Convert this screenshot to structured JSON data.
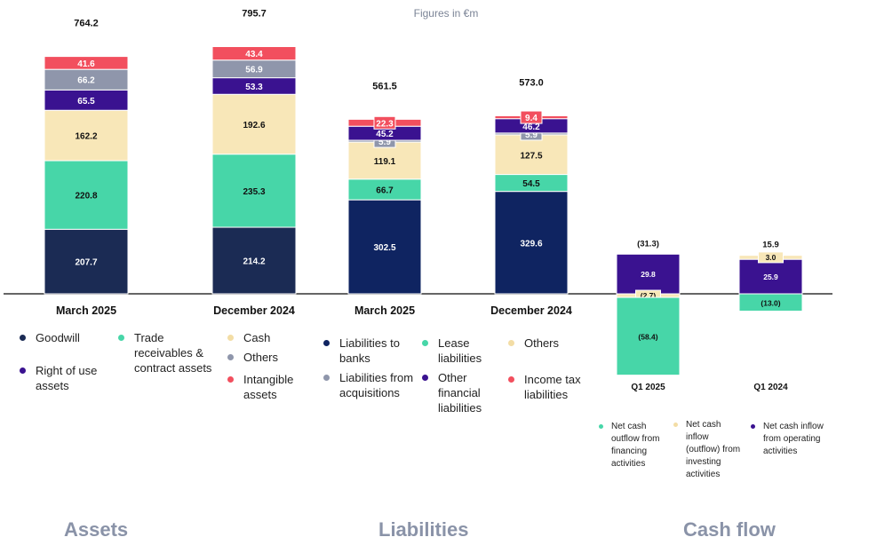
{
  "units_note": "Figures in €m",
  "sections": {
    "assets": "Assets",
    "liabilities": "Liabilities",
    "cash_flow": "Cash flow"
  },
  "colors": {
    "goodwill": "#1b2b54",
    "trade": "#47d6a8",
    "cash": "#f8e7b8",
    "right_of_use": "#3a1290",
    "others_assets": "#8f96ab",
    "intangible": "#f24f5e",
    "banks": "#0f2461",
    "lease": "#47d6a8",
    "acq": "#8f96ab",
    "other_fin": "#3a1290",
    "others_liab": "#f8e7b8",
    "income_tax": "#f24f5e",
    "financing": "#47d6a8",
    "investing": "#f8e7b8",
    "operating": "#3a1290"
  },
  "legends": {
    "assets": [
      {
        "key": "goodwill",
        "label": "Goodwill"
      },
      {
        "key": "right_of_use",
        "label": "Right of use assets"
      },
      {
        "key": "trade",
        "label": "Trade receivables & contract assets"
      },
      {
        "key": "cash",
        "label": "Cash"
      },
      {
        "key": "others_assets",
        "label": "Others"
      },
      {
        "key": "intangible",
        "label": "Intangible assets"
      }
    ],
    "liabilities": [
      {
        "key": "banks",
        "label": "Liabilities to banks"
      },
      {
        "key": "acq",
        "label": "Liabilities from acquisitions"
      },
      {
        "key": "lease",
        "label": "Lease liabilities"
      },
      {
        "key": "other_fin",
        "label": "Other financial liabilities"
      },
      {
        "key": "others_liab",
        "label": "Others"
      },
      {
        "key": "income_tax",
        "label": "Income tax liabilities"
      }
    ],
    "cash_flow": [
      {
        "key": "financing",
        "label": "Net cash outflow from financing activities"
      },
      {
        "key": "investing",
        "label": "Net cash inflow (outflow) from investing activities"
      },
      {
        "key": "operating",
        "label": "Net cash inflow from operating activities"
      }
    ]
  },
  "chart_data": [
    {
      "type": "bar",
      "stacked": true,
      "title": "Assets",
      "categories": [
        "March 2025",
        "December 2024"
      ],
      "totals": [
        "764.2",
        "795.7"
      ],
      "series": [
        {
          "key": "goodwill",
          "name": "Goodwill",
          "values": [
            207.7,
            214.2
          ],
          "labels": [
            "207.7",
            "214.2"
          ]
        },
        {
          "key": "trade",
          "name": "Trade receivables & contract assets",
          "values": [
            220.8,
            235.3
          ],
          "labels": [
            "220.8",
            "235.3"
          ]
        },
        {
          "key": "cash",
          "name": "Cash",
          "values": [
            162.2,
            192.6
          ],
          "labels": [
            "162.2",
            "192.6"
          ]
        },
        {
          "key": "right_of_use",
          "name": "Right of use assets",
          "values": [
            65.5,
            53.3
          ],
          "labels": [
            "65.5",
            "53.3"
          ]
        },
        {
          "key": "others_assets",
          "name": "Others",
          "values": [
            66.2,
            56.9
          ],
          "labels": [
            "66.2",
            "56.9"
          ]
        },
        {
          "key": "intangible",
          "name": "Intangible assets",
          "values": [
            41.6,
            43.4
          ],
          "labels": [
            "41.6",
            "43.4"
          ]
        }
      ]
    },
    {
      "type": "bar",
      "stacked": true,
      "title": "Liabilities",
      "categories": [
        "March 2025",
        "December 2024"
      ],
      "totals": [
        "561.5",
        "573.0"
      ],
      "series": [
        {
          "key": "banks",
          "name": "Liabilities to banks",
          "values": [
            302.5,
            329.6
          ],
          "labels": [
            "302.5",
            "329.6"
          ]
        },
        {
          "key": "lease",
          "name": "Lease liabilities",
          "values": [
            66.7,
            54.5
          ],
          "labels": [
            "66.7",
            "54.5"
          ]
        },
        {
          "key": "others_liab",
          "name": "Others",
          "values": [
            119.1,
            127.5
          ],
          "labels": [
            "119.1",
            "127.5"
          ]
        },
        {
          "key": "acq",
          "name": "Liabilities from acquisitions",
          "values": [
            5.9,
            5.9
          ],
          "labels": [
            "5.9",
            "5.9"
          ]
        },
        {
          "key": "other_fin",
          "name": "Other financial liabilities",
          "values": [
            45.2,
            46.2
          ],
          "labels": [
            "45.2",
            "46.2"
          ]
        },
        {
          "key": "income_tax",
          "name": "Income tax liabilities",
          "values": [
            22.3,
            9.4
          ],
          "labels": [
            "22.3",
            "9.4"
          ]
        }
      ]
    },
    {
      "type": "bar",
      "stacked": true,
      "title": "Cash flow",
      "categories": [
        "Q1 2025",
        "Q1 2024"
      ],
      "totals": [
        "(31.3)",
        "15.9"
      ],
      "series": [
        {
          "key": "operating",
          "name": "Net cash inflow from operating activities",
          "values": [
            29.8,
            25.9
          ],
          "labels": [
            "29.8",
            "25.9"
          ]
        },
        {
          "key": "investing",
          "name": "Net cash inflow (outflow) from investing activities",
          "values": [
            -2.7,
            3.0
          ],
          "labels": [
            "(2.7)",
            "3.0"
          ]
        },
        {
          "key": "financing",
          "name": "Net cash outflow from financing activities",
          "values": [
            -58.4,
            -13.0
          ],
          "labels": [
            "(58.4)",
            "(13.0)"
          ]
        }
      ]
    }
  ]
}
